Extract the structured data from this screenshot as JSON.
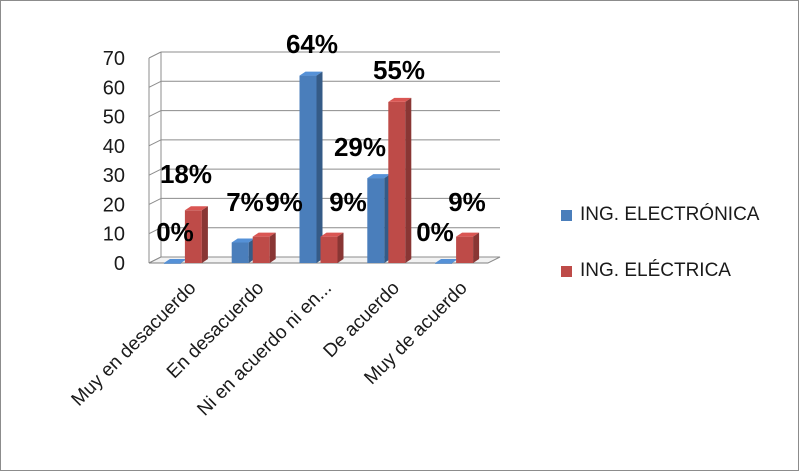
{
  "chart_data": {
    "type": "bar",
    "categories": [
      "Muy en desacuerdo",
      "En desacuerdo",
      "Ni en acuerdo ni en...",
      "De acuerdo",
      "Muy de acuerdo"
    ],
    "series": [
      {
        "name": "ING. ELECTRÓNICA",
        "color": "#4a7ebb",
        "values": [
          0,
          7,
          64,
          29,
          0
        ],
        "labels": [
          "0%",
          "7%",
          "64%",
          "29%",
          "0%"
        ]
      },
      {
        "name": "ING. ELÉCTRICA",
        "color": "#be4b48",
        "values": [
          18,
          9,
          9,
          55,
          9
        ],
        "labels": [
          "18%",
          "9%",
          "9%",
          "55%",
          "9%"
        ]
      }
    ],
    "y_ticks": [
      "0",
      "10",
      "20",
      "30",
      "40",
      "50",
      "60",
      "70"
    ],
    "ylim": [
      0,
      70
    ],
    "grid": true,
    "legend_position": "right",
    "style": "3d-clustered-column"
  }
}
